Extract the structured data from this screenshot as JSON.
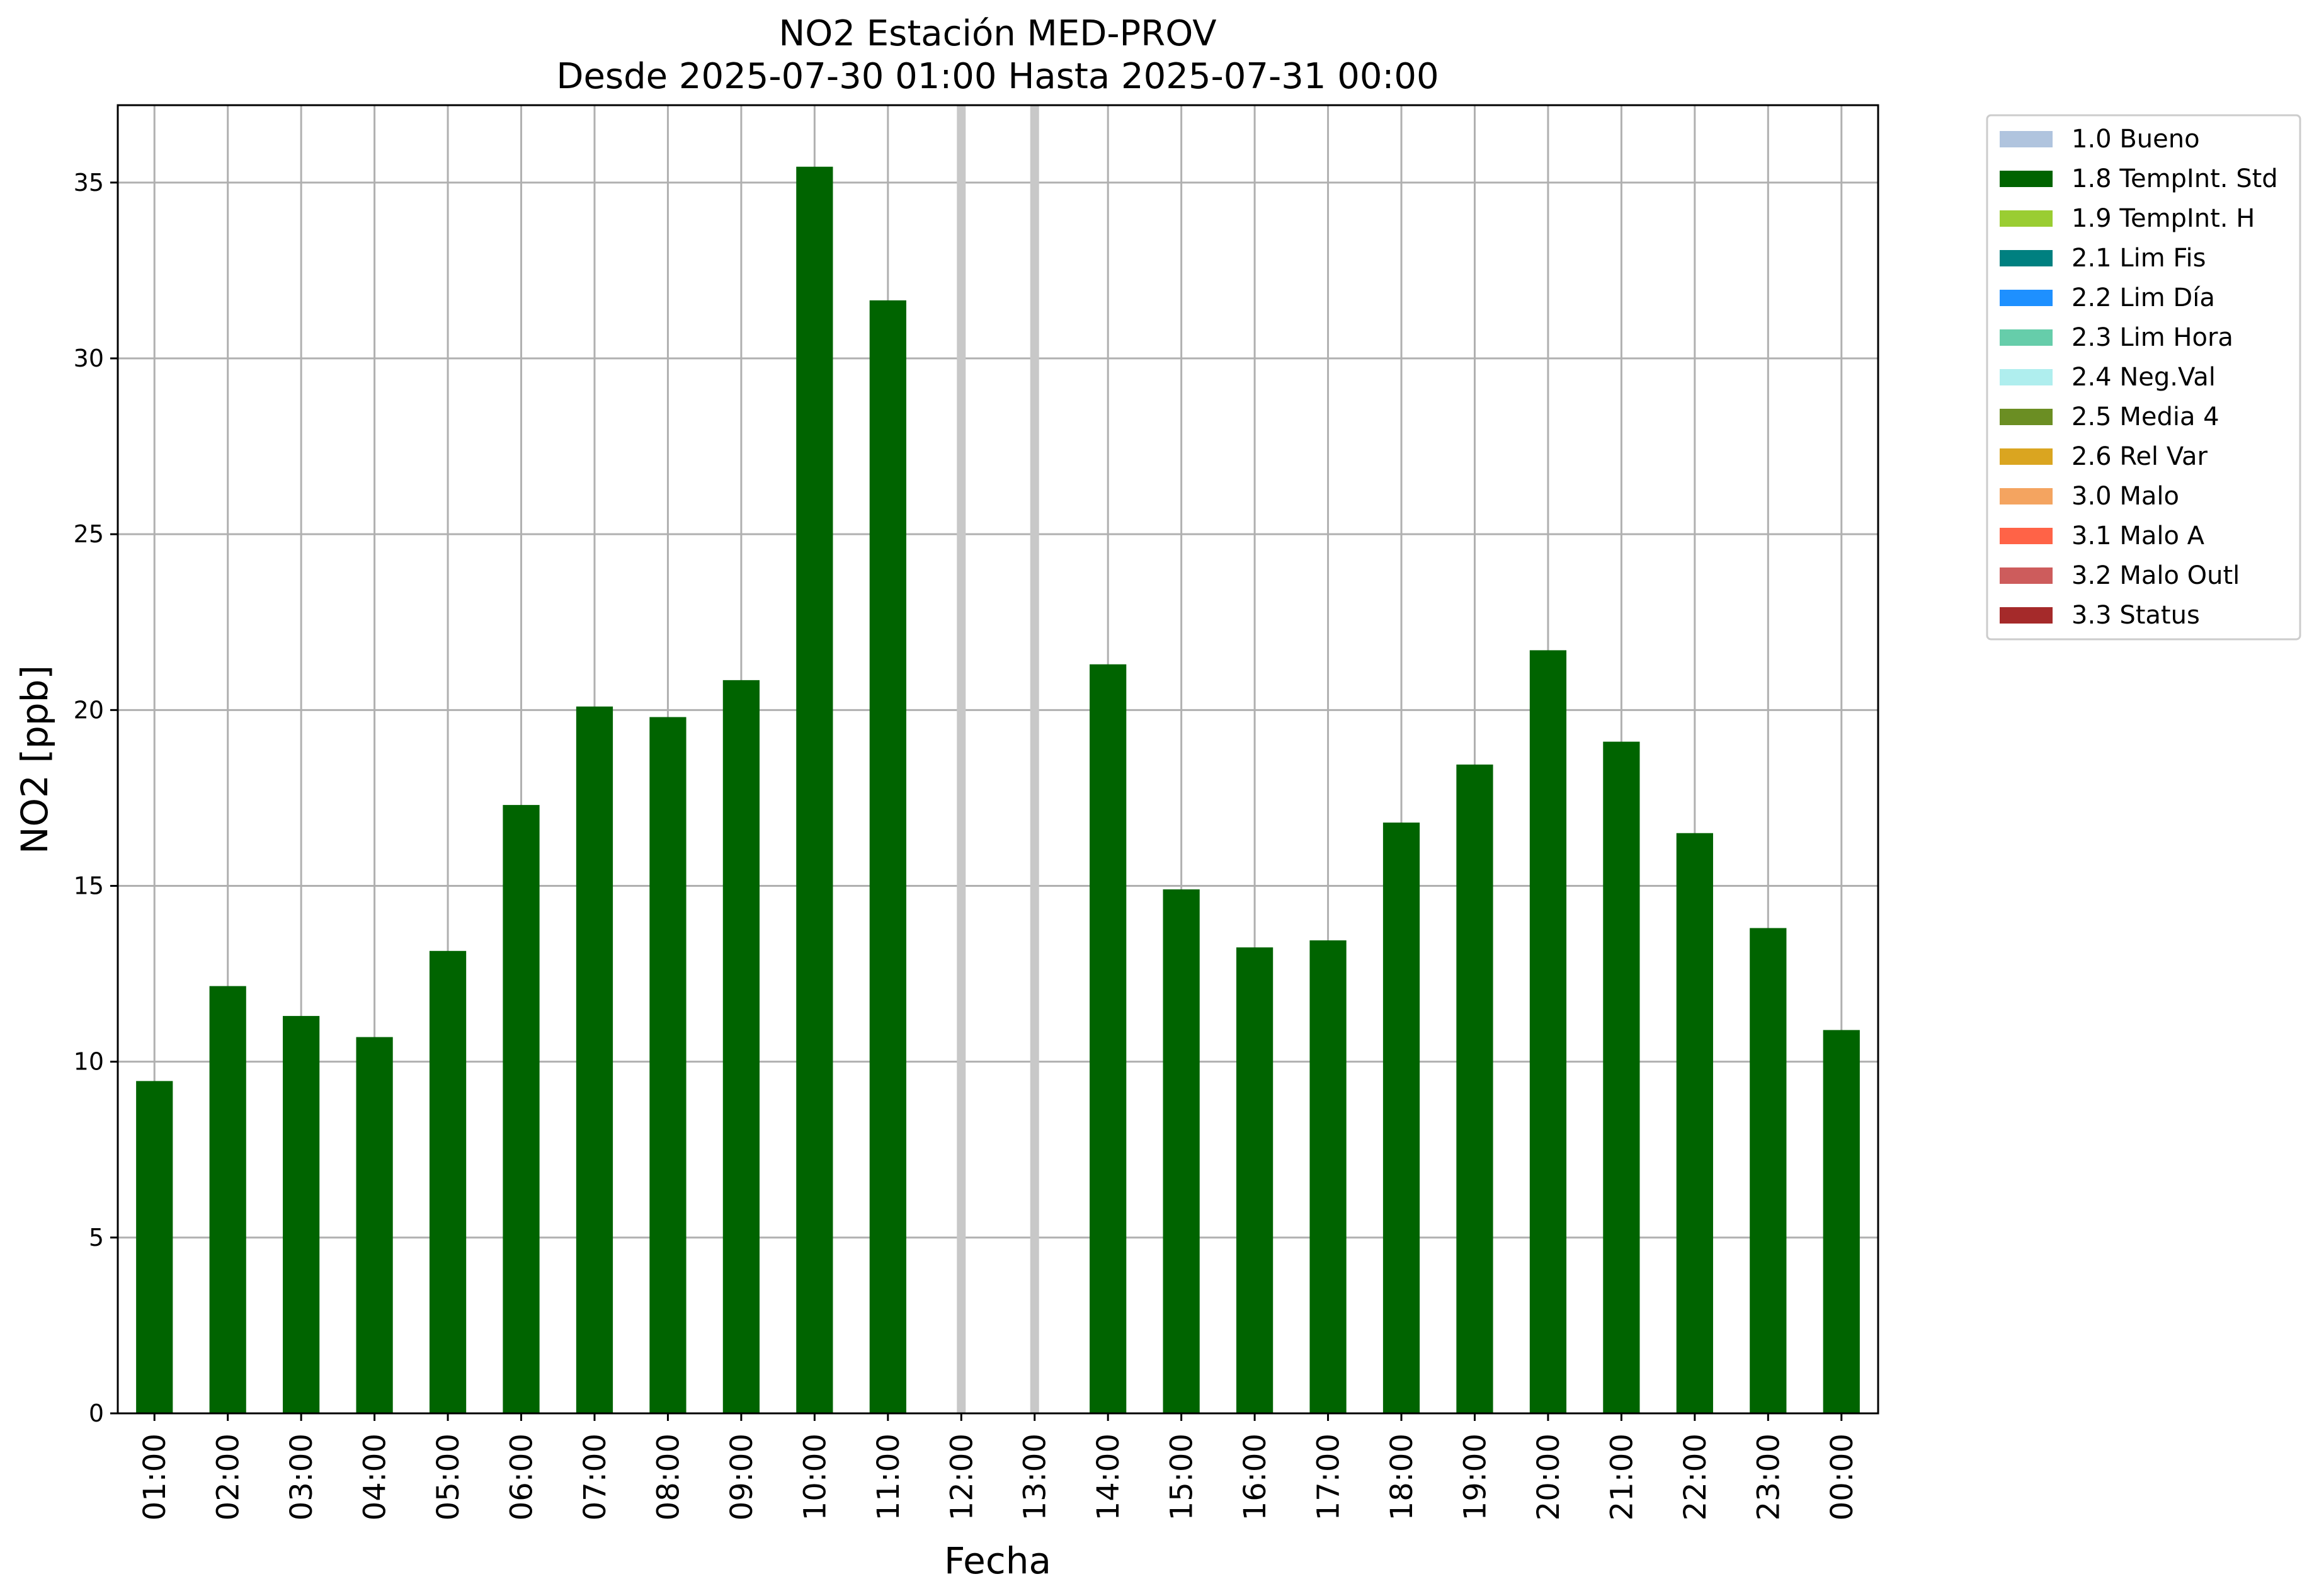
{
  "chart_data": {
    "type": "bar",
    "title": "NO2 Estación MED-PROV",
    "subtitle": "Desde 2025-07-30 01:00 Hasta 2025-07-31 00:00",
    "xlabel": "Fecha",
    "ylabel": "NO2 [ppb]",
    "ylim": [
      0,
      37.2
    ],
    "yticks": [
      0,
      5,
      10,
      15,
      20,
      25,
      30,
      35
    ],
    "grid": true,
    "legend_position": "outside-top-right",
    "categories": [
      "01:00",
      "02:00",
      "03:00",
      "04:00",
      "05:00",
      "06:00",
      "07:00",
      "08:00",
      "09:00",
      "10:00",
      "11:00",
      "12:00",
      "13:00",
      "14:00",
      "15:00",
      "16:00",
      "17:00",
      "18:00",
      "19:00",
      "20:00",
      "21:00",
      "22:00",
      "23:00",
      "00:00"
    ],
    "series": [
      {
        "name": "1.8 TempInt. Std",
        "color": "#006400",
        "values": [
          9.45,
          12.15,
          11.3,
          10.7,
          13.15,
          17.3,
          20.1,
          19.8,
          20.85,
          35.45,
          31.65,
          null,
          null,
          21.3,
          14.9,
          13.25,
          13.45,
          16.8,
          18.45,
          21.7,
          19.1,
          16.5,
          13.8,
          10.9
        ]
      }
    ],
    "missing_markers": [
      "12:00",
      "13:00"
    ],
    "missing_marker_color": "#c8c8c8",
    "legend": [
      {
        "label": "1.0 Bueno",
        "color": "#b0c4de"
      },
      {
        "label": "1.8 TempInt. Std",
        "color": "#006400"
      },
      {
        "label": "1.9 TempInt. H",
        "color": "#9acd32"
      },
      {
        "label": "2.1 Lim Fis",
        "color": "#008080"
      },
      {
        "label": "2.2 Lim Día",
        "color": "#1e90ff"
      },
      {
        "label": "2.3 Lim Hora",
        "color": "#66cdaa"
      },
      {
        "label": "2.4 Neg.Val",
        "color": "#afeeee"
      },
      {
        "label": "2.5 Media 4",
        "color": "#6b8e23"
      },
      {
        "label": "2.6 Rel Var",
        "color": "#daa520"
      },
      {
        "label": "3.0 Malo",
        "color": "#f4a460"
      },
      {
        "label": "3.1 Malo A",
        "color": "#ff6347"
      },
      {
        "label": "3.2 Malo Outl",
        "color": "#cd5c5c"
      },
      {
        "label": "3.3 Status",
        "color": "#a52a2a"
      }
    ]
  }
}
